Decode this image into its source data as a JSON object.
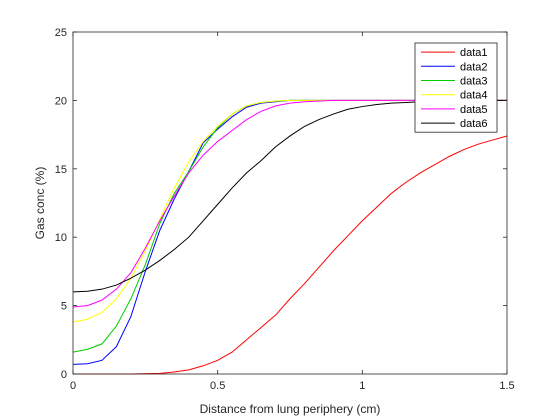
{
  "chart_data": {
    "type": "line",
    "title": "",
    "xlabel": "Distance from lung periphery (cm)",
    "ylabel": "Gas conc (%)",
    "xlim": [
      0,
      1.5
    ],
    "ylim": [
      0,
      25
    ],
    "xticks": [
      0,
      0.5,
      1,
      1.5
    ],
    "xtick_labels": [
      "0",
      "0.5",
      "1",
      "1.5"
    ],
    "yticks": [
      0,
      5,
      10,
      15,
      20,
      25
    ],
    "ytick_labels": [
      "0",
      "5",
      "10",
      "15",
      "20",
      "25"
    ],
    "grid": false,
    "legend_position": "top-right",
    "series": [
      {
        "name": "data1",
        "color": "#ff0000",
        "x": [
          0,
          0.1,
          0.2,
          0.3,
          0.35,
          0.4,
          0.45,
          0.5,
          0.55,
          0.6,
          0.65,
          0.7,
          0.75,
          0.8,
          0.85,
          0.9,
          0.95,
          1.0,
          1.05,
          1.1,
          1.15,
          1.2,
          1.25,
          1.3,
          1.35,
          1.4,
          1.45,
          1.5
        ],
        "y": [
          0,
          0,
          0,
          0.05,
          0.15,
          0.3,
          0.6,
          1.0,
          1.6,
          2.5,
          3.4,
          4.3,
          5.5,
          6.6,
          7.8,
          9.0,
          10.1,
          11.2,
          12.2,
          13.2,
          14.0,
          14.7,
          15.3,
          15.9,
          16.4,
          16.8,
          17.1,
          17.4
        ]
      },
      {
        "name": "data2",
        "color": "#0000ff",
        "x": [
          0,
          0.05,
          0.1,
          0.15,
          0.2,
          0.25,
          0.3,
          0.35,
          0.4,
          0.45,
          0.5,
          0.55,
          0.6,
          0.65,
          0.7,
          0.75,
          0.8,
          1.0,
          1.5
        ],
        "y": [
          0.7,
          0.75,
          1.0,
          2.0,
          4.2,
          7.5,
          10.5,
          12.8,
          14.8,
          16.9,
          17.9,
          18.8,
          19.5,
          19.8,
          19.9,
          20.0,
          20.0,
          20.0,
          20.0
        ]
      },
      {
        "name": "data3",
        "color": "#00cc00",
        "x": [
          0,
          0.05,
          0.1,
          0.15,
          0.2,
          0.25,
          0.3,
          0.35,
          0.4,
          0.45,
          0.5,
          0.55,
          0.6,
          0.65,
          0.7,
          0.75,
          0.8,
          1.0,
          1.5
        ],
        "y": [
          1.6,
          1.8,
          2.2,
          3.5,
          5.5,
          8.0,
          11.0,
          13.2,
          14.8,
          16.6,
          18.0,
          19.0,
          19.6,
          19.85,
          19.95,
          20.0,
          20.0,
          20.0,
          20.0
        ]
      },
      {
        "name": "data4",
        "color": "#ffff00",
        "x": [
          0,
          0.05,
          0.1,
          0.15,
          0.2,
          0.25,
          0.3,
          0.35,
          0.4,
          0.45,
          0.5,
          0.55,
          0.6,
          0.65,
          0.7,
          0.75,
          0.8,
          1.0,
          1.5
        ],
        "y": [
          3.8,
          4.0,
          4.5,
          5.5,
          7.0,
          9.0,
          11.3,
          13.6,
          15.5,
          17.0,
          18.1,
          19.0,
          19.6,
          19.85,
          19.95,
          20.0,
          20.0,
          20.0,
          20.0
        ]
      },
      {
        "name": "data5",
        "color": "#ff00ff",
        "x": [
          0,
          0.05,
          0.1,
          0.15,
          0.2,
          0.25,
          0.3,
          0.35,
          0.4,
          0.45,
          0.5,
          0.55,
          0.6,
          0.65,
          0.7,
          0.75,
          0.8,
          0.9,
          1.0,
          1.5
        ],
        "y": [
          4.9,
          5.0,
          5.4,
          6.2,
          7.4,
          9.2,
          11.2,
          13.0,
          14.7,
          16.0,
          17.0,
          17.8,
          18.6,
          19.2,
          19.6,
          19.8,
          19.9,
          20.0,
          20.0,
          20.0
        ]
      },
      {
        "name": "data6",
        "color": "#000000",
        "x": [
          0,
          0.05,
          0.1,
          0.15,
          0.2,
          0.25,
          0.3,
          0.35,
          0.4,
          0.45,
          0.5,
          0.55,
          0.6,
          0.65,
          0.7,
          0.75,
          0.8,
          0.85,
          0.9,
          0.95,
          1.0,
          1.05,
          1.1,
          1.15,
          1.2,
          1.3,
          1.4,
          1.5
        ],
        "y": [
          6.0,
          6.05,
          6.2,
          6.5,
          7.0,
          7.6,
          8.3,
          9.1,
          10.0,
          11.2,
          12.4,
          13.6,
          14.7,
          15.6,
          16.6,
          17.4,
          18.1,
          18.6,
          19.0,
          19.35,
          19.55,
          19.7,
          19.8,
          19.85,
          19.9,
          19.95,
          20.0,
          20.0
        ]
      }
    ]
  }
}
